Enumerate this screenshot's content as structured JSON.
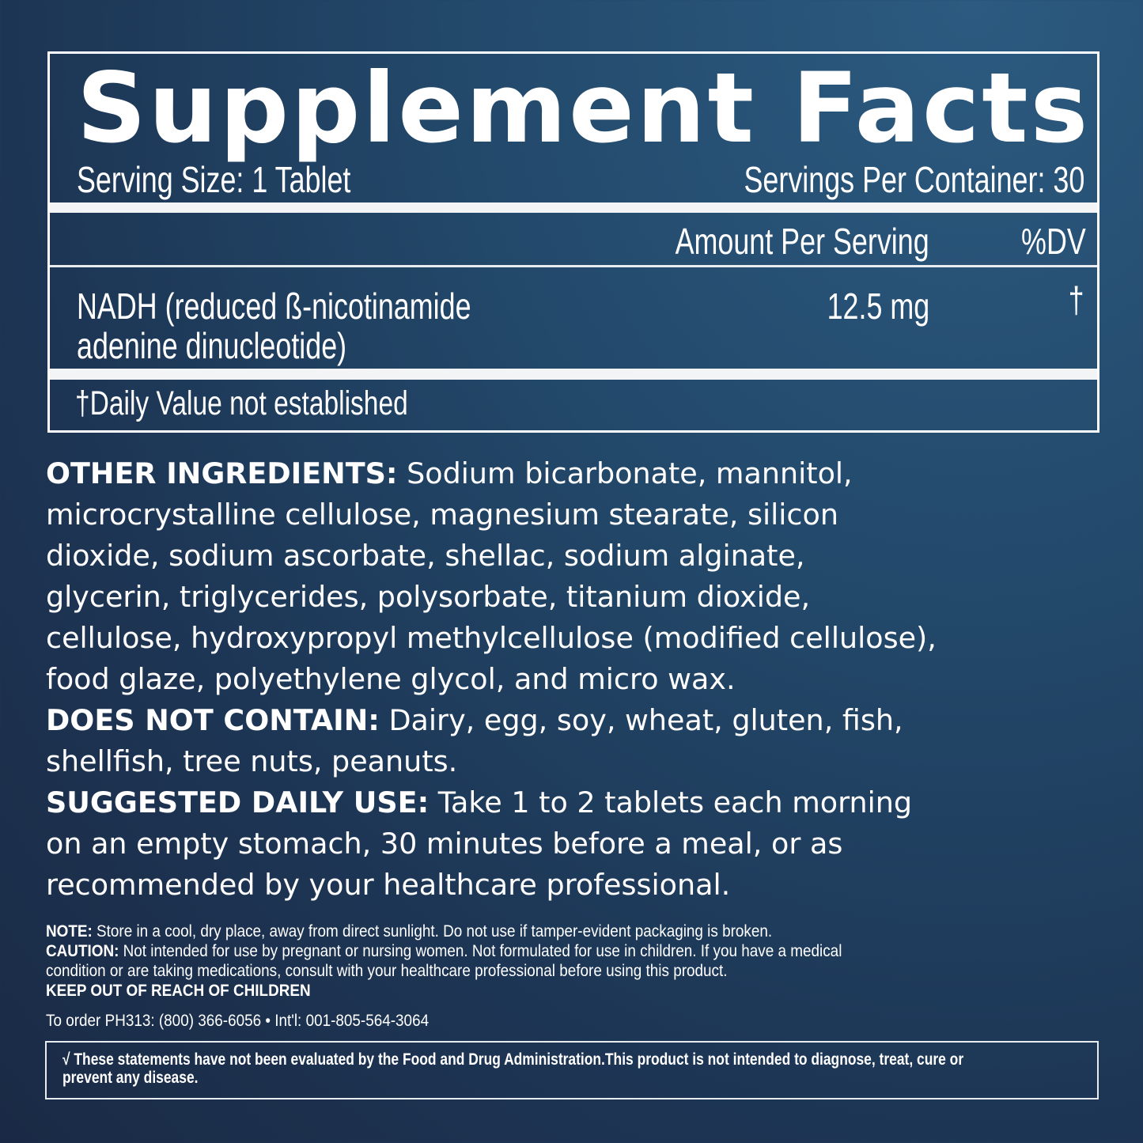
{
  "facts": {
    "title": "Supplement Facts",
    "serving_size": "Serving Size: 1 Tablet",
    "servings_per_container": "Servings Per Container: 30",
    "col_amount": "Amount Per Serving",
    "col_dv": "%DV",
    "rows": [
      {
        "name_line1": "NADH (reduced ß-nicotinamide",
        "name_line2": "adenine dinucleotide)",
        "amount": "12.5 mg",
        "dv": "†"
      }
    ],
    "footnote": "†Daily Value not established"
  },
  "other_ingredients": {
    "label": "OTHER INGREDIENTS:",
    "lines": [
      " Sodium bicarbonate, mannitol,",
      "microcrystalline cellulose, magnesium stearate, silicon",
      "dioxide, sodium ascorbate, shellac, sodium alginate,",
      "glycerin, triglycerides, polysorbate, titanium dioxide,",
      "cellulose, hydroxypropyl methylcellulose (modified cellulose),",
      "food glaze, polyethylene glycol, and micro wax."
    ]
  },
  "does_not_contain": {
    "label": "DOES NOT CONTAIN:",
    "lines": [
      " Dairy, egg, soy, wheat, gluten, fish,",
      "shellfish, tree nuts, peanuts."
    ]
  },
  "suggested_use": {
    "label": "SUGGESTED DAILY USE:",
    "lines": [
      " Take 1 to 2 tablets each morning",
      "on an empty stomach, 30 minutes before a meal, or as",
      "recommended by your healthcare professional."
    ]
  },
  "note": {
    "label": "NOTE:",
    "text": " Store in a cool, dry place, away from direct sunlight. Do not use if tamper-evident packaging is broken."
  },
  "caution": {
    "label": "CAUTION:",
    "line1": " Not intended for use by pregnant or nursing women. Not formulated for use in children. If you have a medical",
    "line2": "condition or are taking medications, consult with your healthcare professional before using this product."
  },
  "keep_out": "KEEP OUT OF REACH OF CHILDREN",
  "order": "To order PH313: (800) 366-6056 • Int'l: 001-805-564-3064",
  "disclaimer": {
    "line1": "√ These statements have not been evaluated by the Food and Drug Administration.This product is not intended to diagnose, treat, cure or",
    "line2": "prevent any disease."
  }
}
